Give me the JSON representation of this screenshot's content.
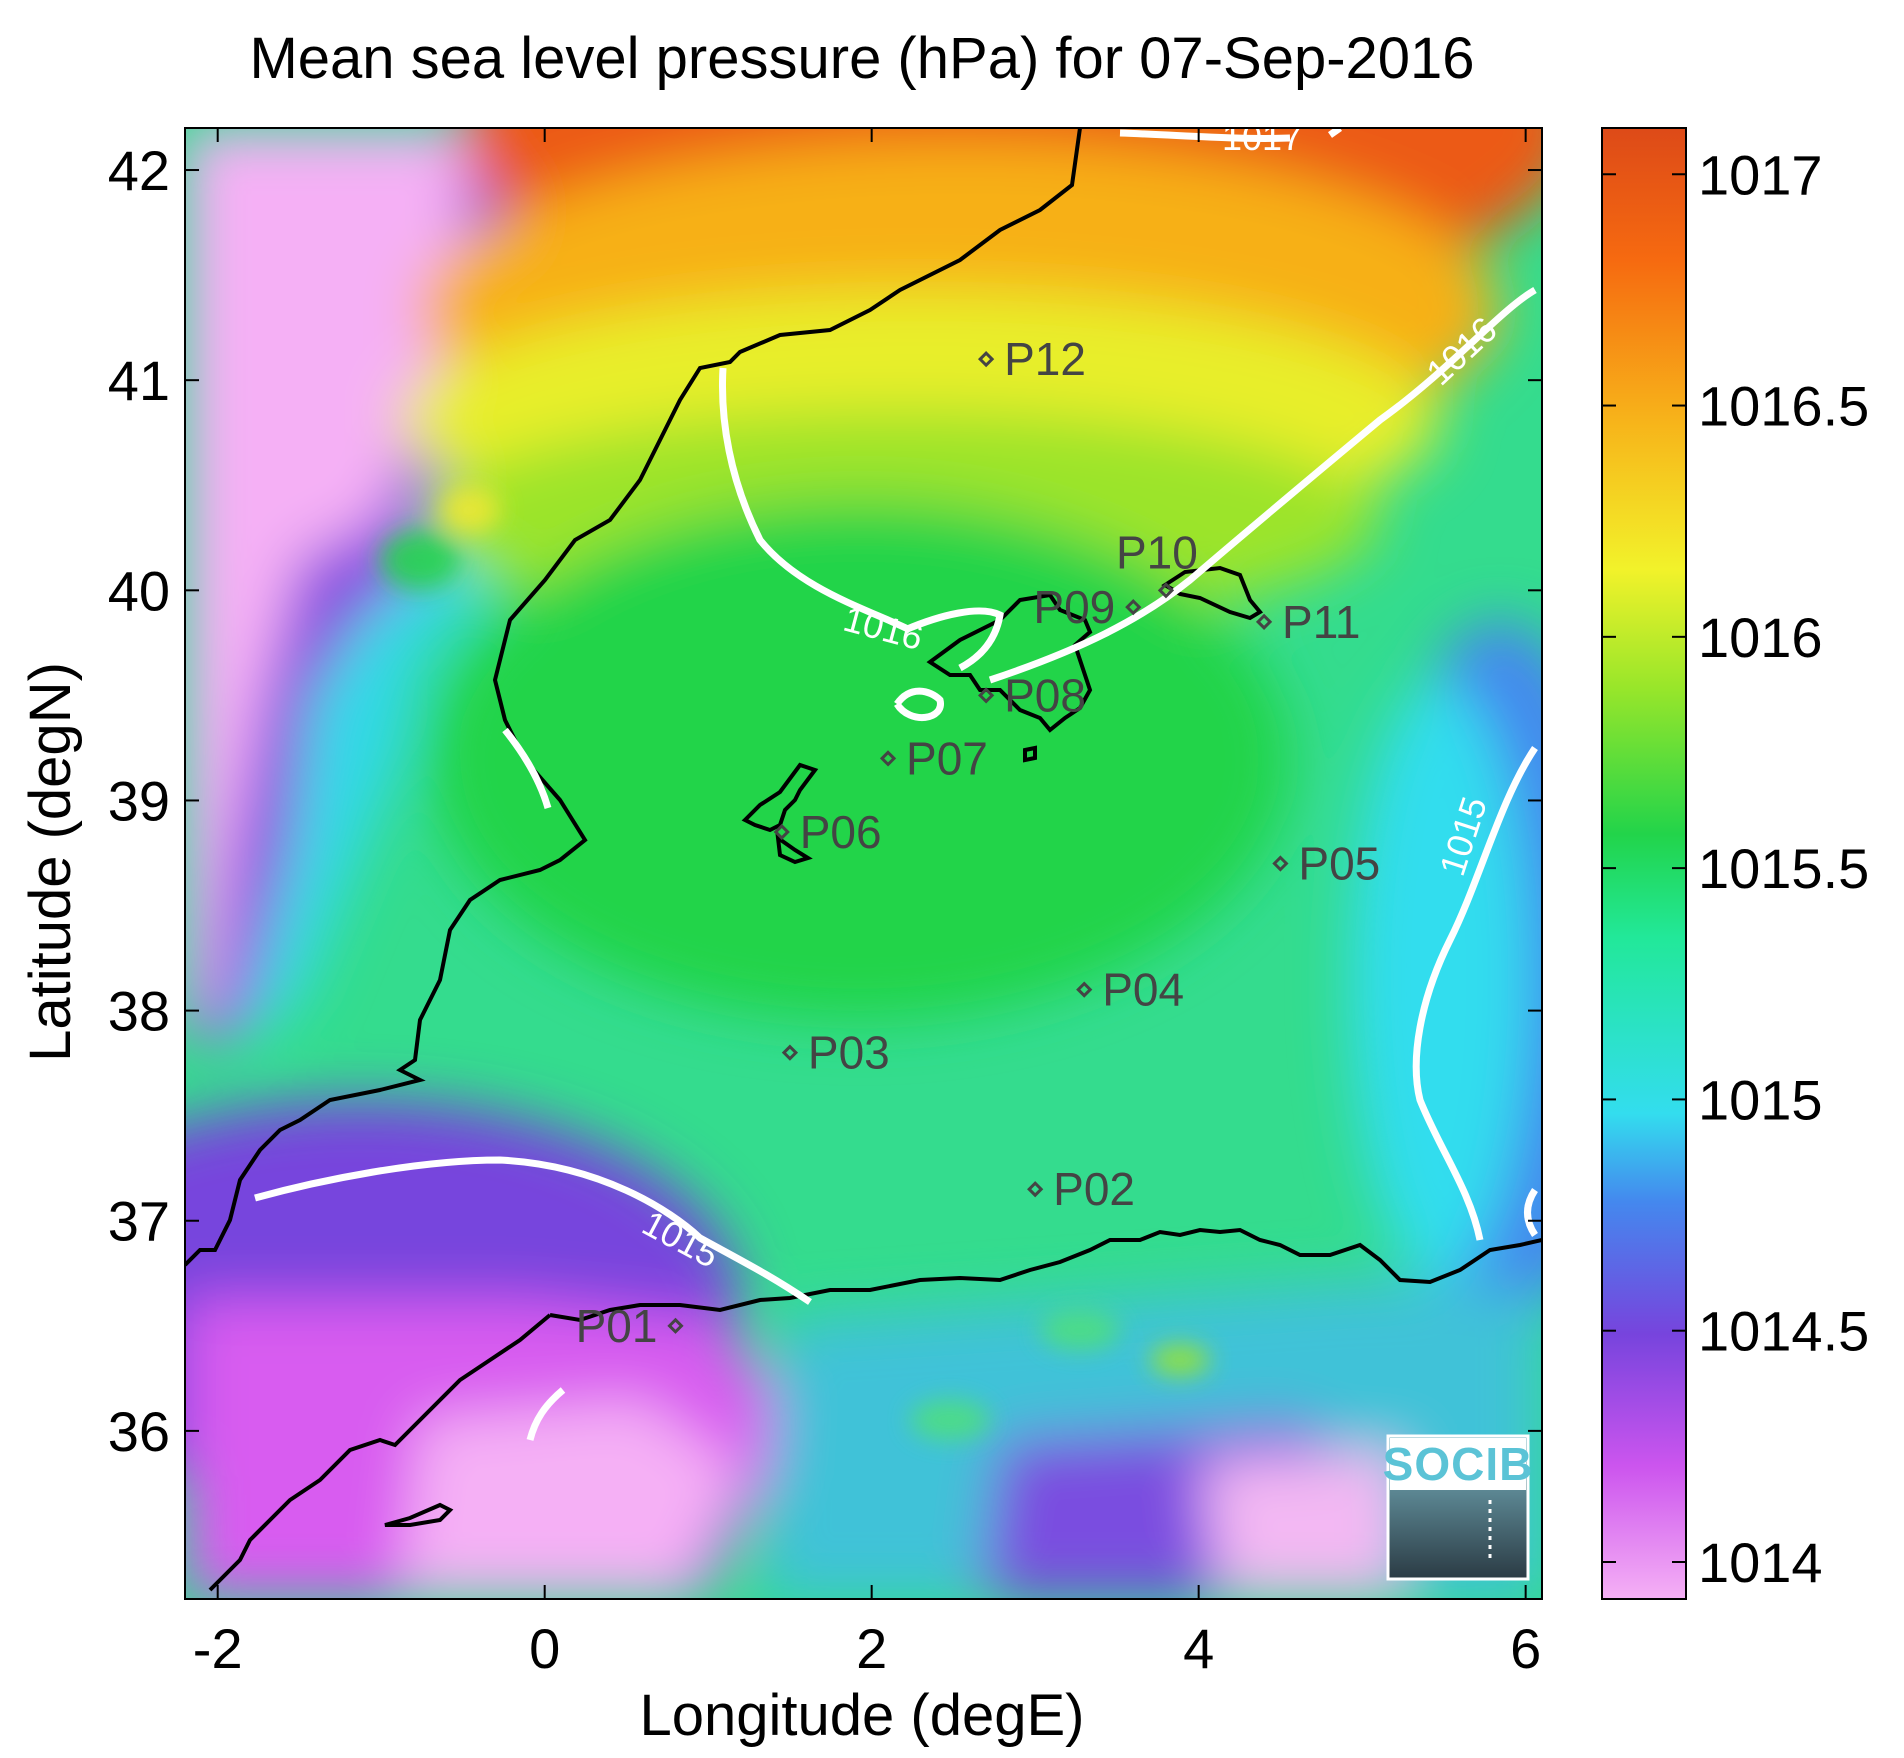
{
  "title": "Mean sea level pressure (hPa) for 07-Sep-2016",
  "xlabel": "Longitude (degE)",
  "ylabel": "Latitude (degN)",
  "x_ticks": [
    "-2",
    "0",
    "2",
    "4",
    "6"
  ],
  "y_ticks": [
    "36",
    "37",
    "38",
    "39",
    "40",
    "41",
    "42"
  ],
  "colorbar": {
    "labels": [
      "1014",
      "1014.5",
      "1015",
      "1015.5",
      "1016",
      "1016.5",
      "1017"
    ],
    "range": [
      1013.92,
      1017.1
    ],
    "colors": [
      "#f5b0f5",
      "#cc55ee",
      "#7744dd",
      "#4488ee",
      "#33ddee",
      "#22e899",
      "#22d44a",
      "#99e62a",
      "#f2f22a",
      "#f7b41a",
      "#f66a10",
      "#dd4a18"
    ]
  },
  "logo": "SOCIB",
  "chart_data": {
    "type": "heatmap",
    "title": "Mean sea level pressure (hPa) for 07-Sep-2016",
    "xlabel": "Longitude (degE)",
    "ylabel": "Latitude (degN)",
    "xlim": [
      -2.2,
      6.1
    ],
    "ylim": [
      35.2,
      42.2
    ],
    "contour_levels": [
      "1015",
      "1016",
      "1017"
    ],
    "stations": [
      {
        "name": "P01",
        "lon": 0.8,
        "lat": 36.5
      },
      {
        "name": "P02",
        "lon": 3.0,
        "lat": 37.15
      },
      {
        "name": "P03",
        "lon": 1.5,
        "lat": 37.8
      },
      {
        "name": "P04",
        "lon": 3.3,
        "lat": 38.1
      },
      {
        "name": "P05",
        "lon": 4.5,
        "lat": 38.7
      },
      {
        "name": "P06",
        "lon": 1.45,
        "lat": 38.85
      },
      {
        "name": "P07",
        "lon": 2.1,
        "lat": 39.2
      },
      {
        "name": "P08",
        "lon": 2.7,
        "lat": 39.5
      },
      {
        "name": "P09",
        "lon": 3.6,
        "lat": 39.92
      },
      {
        "name": "P10",
        "lon": 3.8,
        "lat": 40.0
      },
      {
        "name": "P11",
        "lon": 4.4,
        "lat": 39.85
      },
      {
        "name": "P12",
        "lon": 2.7,
        "lat": 41.1
      }
    ]
  }
}
